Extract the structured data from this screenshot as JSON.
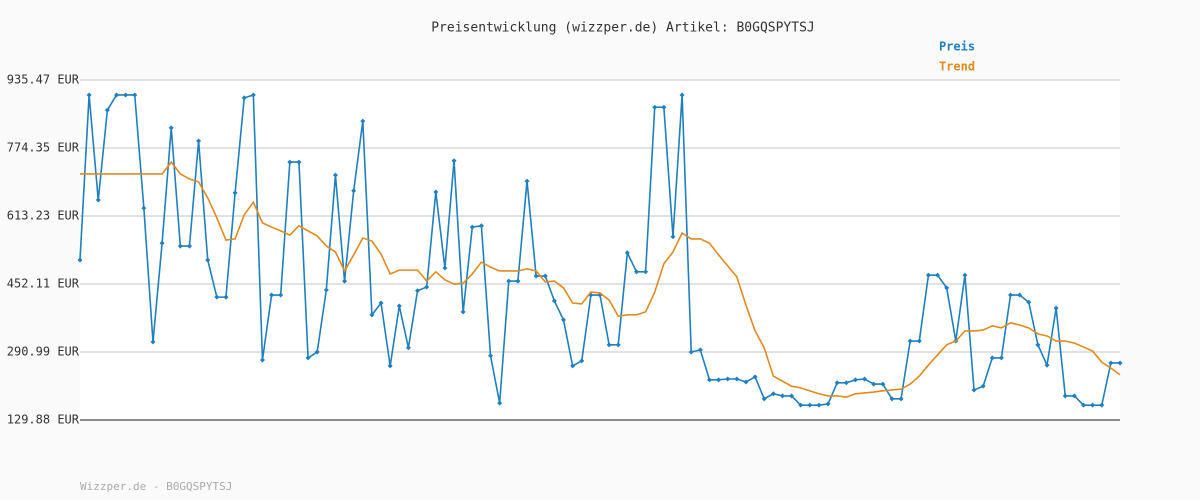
{
  "chart_data": {
    "type": "line",
    "title": "Preisentwicklung (wizzper.de) Artikel: B0GQSPYTSJ",
    "footer": "Wizzper.de - B0GQSPYTSJ",
    "ylim": [
      129.88,
      935.47
    ],
    "yticks": [
      {
        "value": 129.88,
        "label": "129.88 EUR"
      },
      {
        "value": 290.99,
        "label": "290.99 EUR"
      },
      {
        "value": 452.11,
        "label": "452.11 EUR"
      },
      {
        "value": 613.23,
        "label": "613.23 EUR"
      },
      {
        "value": 774.35,
        "label": "774.35 EUR"
      },
      {
        "value": 935.47,
        "label": "935.47 EUR"
      }
    ],
    "grid": true,
    "legend": "top-right",
    "series": [
      {
        "name": "Preis",
        "color": "#1f7fbf",
        "markers": true,
        "values": [
          509,
          900,
          651,
          864,
          900,
          900,
          900,
          632,
          315,
          549,
          822,
          542,
          542,
          791,
          509,
          421,
          421,
          668,
          893,
          900,
          272,
          426,
          426,
          741,
          741,
          277,
          291,
          438,
          710,
          459,
          673,
          838,
          379,
          407,
          258,
          400,
          301,
          436,
          445,
          670,
          490,
          744,
          386,
          587,
          590,
          282,
          170,
          459,
          459,
          696,
          471,
          471,
          412,
          367,
          258,
          270,
          426,
          426,
          308,
          308,
          526,
          481,
          481,
          871,
          871,
          564,
          900,
          291,
          296,
          225,
          225,
          227,
          227,
          220,
          232,
          180,
          192,
          187,
          187,
          165,
          165,
          165,
          168,
          218,
          218,
          225,
          227,
          215,
          215,
          180,
          180,
          317,
          317,
          473,
          473,
          443,
          317,
          473,
          201,
          210,
          277,
          277,
          426,
          426,
          409,
          308,
          260,
          395,
          187,
          187,
          165,
          165,
          165,
          265,
          265
        ]
      },
      {
        "name": "Trend",
        "color": "#e08a1e",
        "markers": false,
        "values": [
          713,
          713,
          713,
          713,
          713,
          713,
          713,
          713,
          713,
          713,
          741,
          713,
          701,
          694,
          656,
          609,
          556,
          559,
          616,
          646,
          597,
          587,
          578,
          568,
          590,
          578,
          566,
          542,
          528,
          483,
          521,
          561,
          554,
          523,
          476,
          485,
          485,
          485,
          459,
          481,
          462,
          452,
          454,
          476,
          504,
          492,
          483,
          483,
          483,
          488,
          483,
          457,
          459,
          443,
          407,
          405,
          433,
          431,
          414,
          376,
          379,
          379,
          386,
          433,
          500,
          528,
          573,
          559,
          559,
          549,
          521,
          495,
          469,
          402,
          341,
          301,
          234,
          222,
          210,
          206,
          199,
          192,
          187,
          187,
          184,
          192,
          194,
          196,
          199,
          201,
          203,
          215,
          234,
          260,
          284,
          308,
          317,
          341,
          341,
          343,
          353,
          348,
          360,
          355,
          348,
          334,
          329,
          317,
          317,
          312,
          303,
          293,
          267,
          253,
          237
        ]
      }
    ]
  }
}
